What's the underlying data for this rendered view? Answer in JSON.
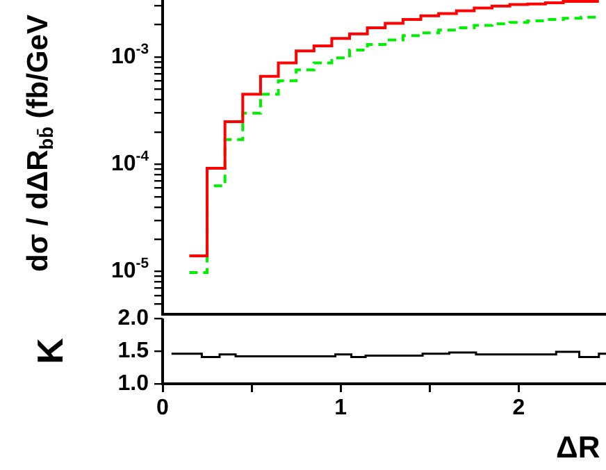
{
  "chart_data": [
    {
      "type": "histogram",
      "ylabel": "dσ / dΔR$_{bb̄}$ (fb/GeV",
      "bins": [
        0.15,
        0.25,
        0.35,
        0.45,
        0.55,
        0.65,
        0.75,
        0.85,
        0.95,
        1.05,
        1.15,
        1.25,
        1.35,
        1.45,
        1.55,
        1.65,
        1.75,
        1.85,
        1.95,
        2.05,
        2.15,
        2.25,
        2.35,
        2.45
      ],
      "series": [
        {
          "color": "#ff0000",
          "values": [
            1.4e-05,
            9.2e-05,
            0.00025,
            0.00045,
            0.00066,
            0.00088,
            0.00114,
            0.00127,
            0.00149,
            0.00164,
            0.00187,
            0.00206,
            0.00224,
            0.00242,
            0.00254,
            0.0027,
            0.00286,
            0.00298,
            0.00308,
            0.00312,
            0.0032,
            0.0033,
            0.0033
          ]
        },
        {
          "color": "#00ee00",
          "line_style": "dashed",
          "values": [
            9.8e-06,
            6.3e-05,
            0.00017,
            0.0003,
            0.00045,
            0.0006,
            0.00076,
            0.00088,
            0.00098,
            0.00116,
            0.00131,
            0.00144,
            0.00158,
            0.00168,
            0.00178,
            0.00187,
            0.00197,
            0.00204,
            0.0021,
            0.00217,
            0.00224,
            0.0023,
            0.00235
          ]
        }
      ],
      "xlim": [
        0,
        2.49
      ],
      "ylim": [
        4e-06,
        0.0034
      ],
      "log": "y",
      "grid": false,
      "tick_labels": "y",
      "xticks": [
        {
          "value": 0,
          "label": null
        },
        {
          "value": 0.5,
          "label": null
        },
        {
          "value": 1,
          "label": null
        },
        {
          "value": 1.5,
          "label": null
        },
        {
          "value": 2,
          "label": null
        }
      ],
      "yticks": [
        {
          "value": 5e-06,
          "label": null
        },
        {
          "value": 6e-06,
          "label": null
        },
        {
          "value": 7e-06,
          "label": null
        },
        {
          "value": 8e-06,
          "label": null
        },
        {
          "value": 9e-06,
          "label": null
        },
        {
          "value": 1e-05,
          "label": "10$^{-5}$"
        },
        {
          "value": 2e-05,
          "label": null
        },
        {
          "value": 3e-05,
          "label": null
        },
        {
          "value": 4e-05,
          "label": null
        },
        {
          "value": 5e-05,
          "label": null
        },
        {
          "value": 6e-05,
          "label": null
        },
        {
          "value": 7e-05,
          "label": null
        },
        {
          "value": 8e-05,
          "label": null
        },
        {
          "value": 9e-05,
          "label": null
        },
        {
          "value": 0.0001,
          "label": "10$^{-4}$"
        },
        {
          "value": 0.0002,
          "label": null
        },
        {
          "value": 0.0003,
          "label": null
        },
        {
          "value": 0.0004,
          "label": null
        },
        {
          "value": 0.0005,
          "label": null
        },
        {
          "value": 0.0006,
          "label": null
        },
        {
          "value": 0.0007,
          "label": null
        },
        {
          "value": 0.0008,
          "label": null
        },
        {
          "value": 0.0009,
          "label": null
        },
        {
          "value": 0.001,
          "label": "10$^{-3}$"
        },
        {
          "value": 0.002,
          "label": null
        },
        {
          "value": 0.003,
          "label": null
        }
      ]
    },
    {
      "type": "step",
      "ylabel": "K",
      "xlabel": "ΔR",
      "color": "#000000",
      "marker": "none",
      "grid": false,
      "x": [
        0.05,
        0.22,
        0.32,
        0.41,
        0.97,
        1.06,
        1.14,
        1.46,
        1.61,
        1.76,
        2.21,
        2.34,
        2.45,
        2.49
      ],
      "values": [
        1.46,
        1.41,
        1.45,
        1.42,
        1.45,
        1.41,
        1.43,
        1.46,
        1.48,
        1.45,
        1.49,
        1.41,
        1.46,
        1.46
      ],
      "xlim": [
        0,
        2.49
      ],
      "ylim": [
        1.0,
        2.0
      ],
      "xticks": [
        0,
        {
          "value": 0.5,
          "label": null
        },
        1,
        {
          "value": 1.5,
          "label": null
        },
        2
      ],
      "yticks": [
        {
          "value": 1.0,
          "label": "1.0"
        },
        {
          "value": 1.5,
          "label": "1.5"
        },
        {
          "value": 2.0,
          "label": "2.0"
        }
      ]
    }
  ]
}
